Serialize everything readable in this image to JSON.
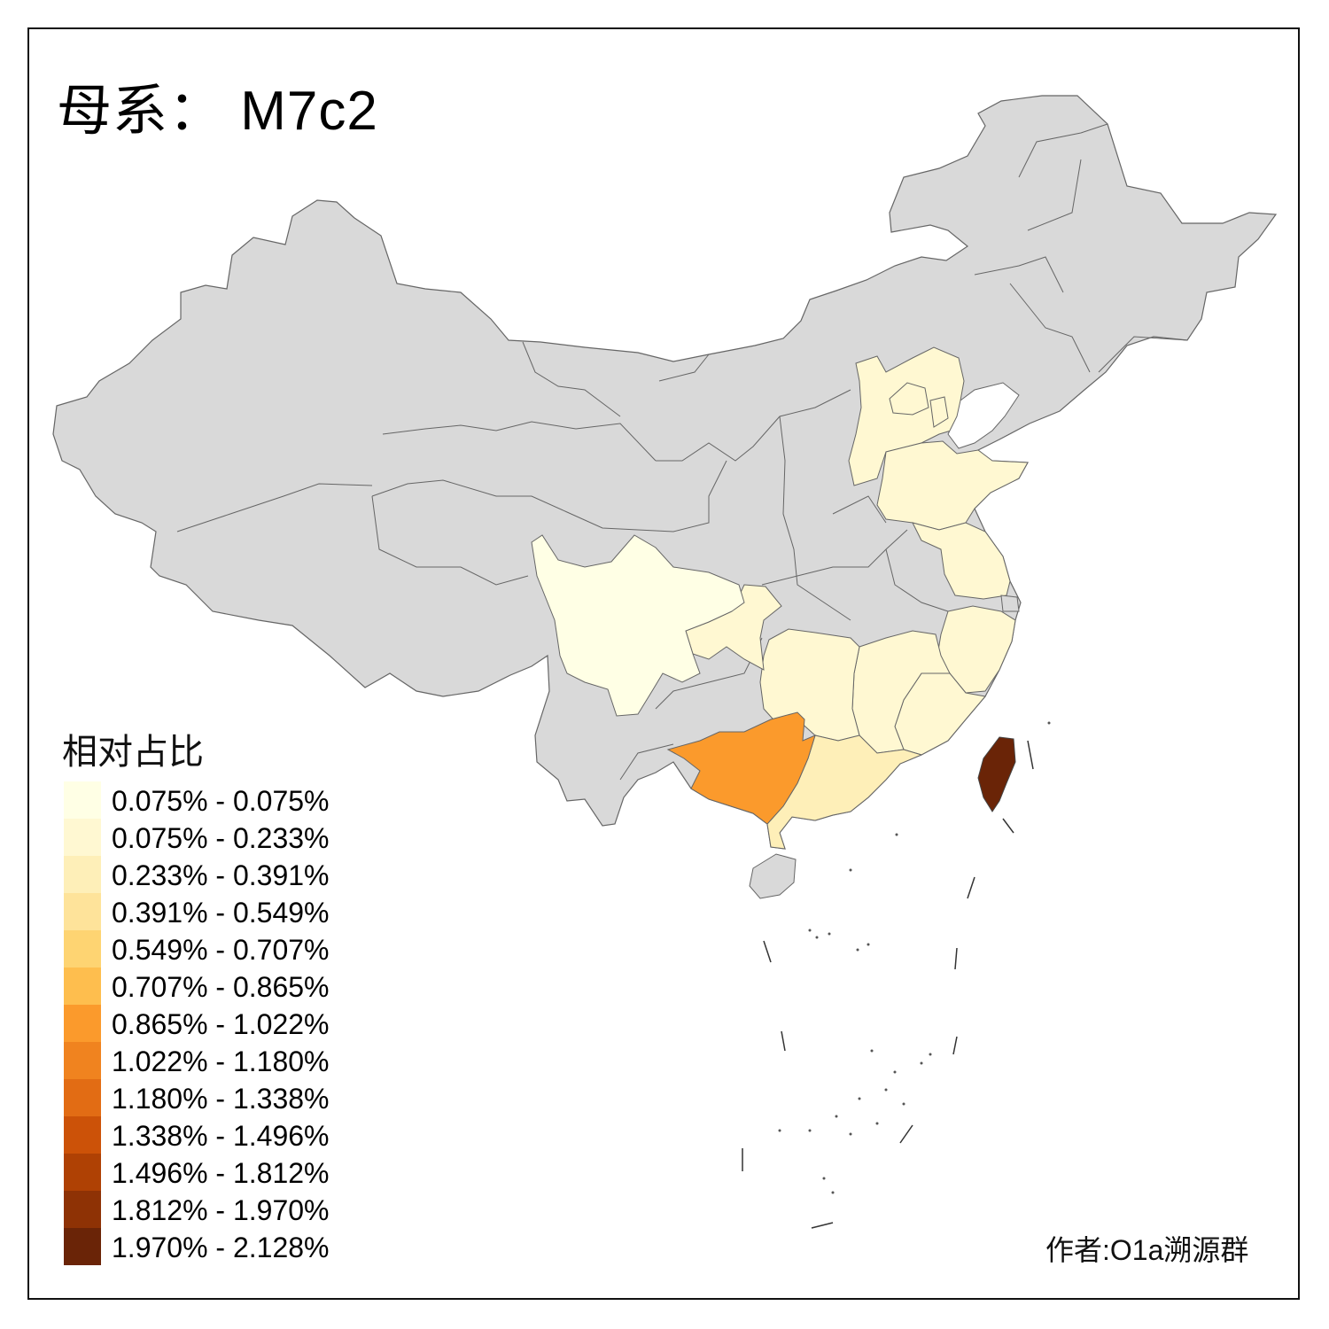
{
  "title": "母系： M7c2",
  "legend": {
    "title": "相对占比",
    "classes": [
      {
        "label": "0.075% - 0.075%",
        "color": "#FFFFE5"
      },
      {
        "label": "0.075% - 0.233%",
        "color": "#FFF8D2"
      },
      {
        "label": "0.233% - 0.391%",
        "color": "#FEEFB8"
      },
      {
        "label": "0.391% - 0.549%",
        "color": "#FEE39A"
      },
      {
        "label": "0.549% - 0.707%",
        "color": "#FED472"
      },
      {
        "label": "0.707% - 0.865%",
        "color": "#FEBE4E"
      },
      {
        "label": "0.865% - 1.022%",
        "color": "#FB9A2C"
      },
      {
        "label": "1.022% - 1.180%",
        "color": "#F0831F"
      },
      {
        "label": "1.180% - 1.338%",
        "color": "#E26C14"
      },
      {
        "label": "1.338% - 1.496%",
        "color": "#CC5208"
      },
      {
        "label": "1.496% - 1.812%",
        "color": "#AF4104"
      },
      {
        "label": "1.812% - 1.970%",
        "color": "#8E3205"
      },
      {
        "label": "1.970% - 2.128%",
        "color": "#6A2407"
      }
    ]
  },
  "credit": "作者:O1a溯源群",
  "colors": {
    "no_data": "#D9D9D9",
    "border": "#666666",
    "sichuan": "#FFFFE5",
    "low": "#FFF8D2",
    "guangdong": "#FEEFB8",
    "guangxi": "#FB9A2C",
    "taiwan": "#6A2407"
  }
}
